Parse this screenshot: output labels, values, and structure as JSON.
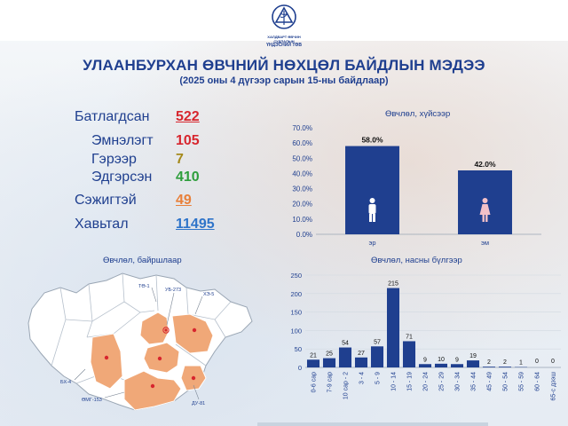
{
  "header": {
    "logo_text_line1": "ХАЛДВАРТ ӨВЧИН СУДЛАЛЫН",
    "logo_text_line2": "ҮНДЭСНИЙ ТӨВ",
    "title": "УЛААНБУРХАН ӨВЧНИЙ НӨХЦӨЛ БАЙДЛЫН МЭДЭЭ",
    "subtitle": "(2025 оны 4 дүгээр сарын 15-ны байдлаар)"
  },
  "stats": {
    "confirmed_label": "Батлагдсан",
    "confirmed_value": "522",
    "hospital_label": "Эмнэлэгт",
    "hospital_value": "105",
    "home_label": "Гэрээр",
    "home_value": "7",
    "recovered_label": "Эдгэрсэн",
    "recovered_value": "410",
    "suspected_label": "Сэжигтэй",
    "suspected_value": "49",
    "contacts_label": "Хавьтал",
    "contacts_value": "11495"
  },
  "colors": {
    "primary": "#1f3f8f",
    "red": "#d7262e",
    "olive": "#a58a1c",
    "green": "#2e9e3c",
    "orange": "#e8803a",
    "blue": "#2f74c9",
    "map_fill": "#f0a878"
  },
  "map": {
    "title": "Өвчлөл, байршлаар",
    "labels": [
      "ТӨ-1",
      "УБ-273",
      "ХЭ-5",
      "БХ-4",
      "ӨМГ-153",
      "ДУ-81"
    ]
  },
  "chart_data": [
    {
      "type": "bar",
      "title": "Өвчлөл, хүйсээр",
      "categories": [
        "эр",
        "эм"
      ],
      "values": [
        58.0,
        42.0
      ],
      "value_labels": [
        "58.0%",
        "42.0%"
      ],
      "icons": [
        "male-person-icon",
        "female-person-icon"
      ],
      "ylim": [
        0,
        70
      ],
      "yticks": [
        "0.0%",
        "10.0%",
        "20.0%",
        "30.0%",
        "40.0%",
        "50.0%",
        "60.0%",
        "70.0%"
      ],
      "bar_color": "#1f3f8f",
      "grid": false
    },
    {
      "type": "bar",
      "title": "Өвчлөл, насны бүлгээр",
      "categories": [
        "0-6 сар",
        "7-9 сар",
        "10 сар - 2",
        "3 - 4",
        "5 - 9",
        "10 - 14",
        "15 - 19",
        "20 - 24",
        "25 - 29",
        "30 - 34",
        "35 - 44",
        "45 - 49",
        "50 - 54",
        "55 - 59",
        "60 - 64",
        "65-с дээш"
      ],
      "values": [
        21,
        25,
        54,
        27,
        57,
        215,
        71,
        9,
        10,
        9,
        19,
        2,
        2,
        1,
        0,
        0
      ],
      "ylim": [
        0,
        250
      ],
      "yticks": [
        "0",
        "50",
        "100",
        "150",
        "200",
        "250"
      ],
      "bar_color": "#1f3f8f",
      "grid": true
    }
  ]
}
